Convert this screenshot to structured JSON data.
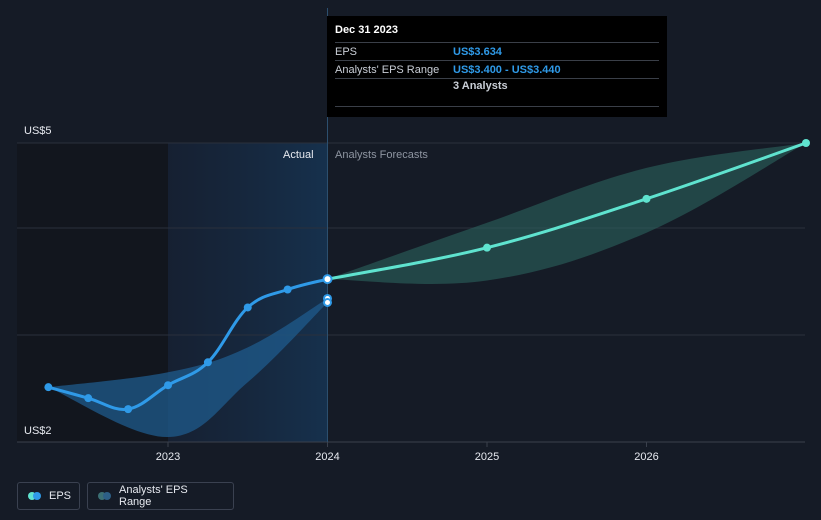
{
  "tooltip": {
    "date": "Dec 31 2023",
    "eps_label": "EPS",
    "eps_value": "US$3.634",
    "range_label": "Analysts' EPS Range",
    "range_value": "US$3.400 - US$3.440",
    "analysts": "3 Analysts"
  },
  "labels": {
    "actual": "Actual",
    "forecast": "Analysts Forecasts"
  },
  "legend": {
    "eps": "EPS",
    "range": "Analysts' EPS Range"
  },
  "colors": {
    "eps_actual": "#2f9ae8",
    "eps_forecast": "#5fe3cf",
    "range_actual": "#1f5b8c",
    "range_forecast": "#2e6a62",
    "background": "#151b26"
  },
  "chart_data": {
    "type": "line",
    "x_ticks": [
      "2023",
      "2024",
      "2025",
      "2026"
    ],
    "y_ticks": [
      "US$2",
      "US$5"
    ],
    "ylim": [
      2,
      5
    ],
    "grid": true,
    "series": [
      {
        "name": "EPS",
        "segment": "actual",
        "points": [
          [
            2022.25,
            2.55
          ],
          [
            2022.5,
            2.44
          ],
          [
            2022.75,
            2.33
          ],
          [
            2023.0,
            2.57
          ],
          [
            2023.25,
            2.8
          ],
          [
            2023.5,
            3.35
          ],
          [
            2023.75,
            3.53
          ],
          [
            2024.0,
            3.634
          ]
        ]
      },
      {
        "name": "EPS",
        "segment": "forecast",
        "points": [
          [
            2024.0,
            3.634
          ],
          [
            2025.0,
            3.95
          ],
          [
            2026.0,
            4.44
          ],
          [
            2027.0,
            5.0
          ]
        ]
      }
    ],
    "range_actual": {
      "upper": [
        [
          2022.25,
          2.55
        ],
        [
          2023.0,
          2.7
        ],
        [
          2023.5,
          2.95
        ],
        [
          2024.0,
          3.44
        ]
      ],
      "lower": [
        [
          2022.25,
          2.55
        ],
        [
          2023.0,
          2.05
        ],
        [
          2023.5,
          2.6
        ],
        [
          2024.0,
          3.4
        ]
      ],
      "points": [
        [
          2024.0,
          3.44
        ],
        [
          2024.0,
          3.4
        ]
      ]
    },
    "range_forecast": {
      "upper": [
        [
          2024.0,
          3.634
        ],
        [
          2025.0,
          4.2
        ],
        [
          2026.0,
          4.75
        ],
        [
          2027.0,
          5.0
        ]
      ],
      "lower": [
        [
          2024.0,
          3.634
        ],
        [
          2025.0,
          3.62
        ],
        [
          2026.0,
          4.1
        ],
        [
          2027.0,
          5.0
        ]
      ]
    }
  }
}
